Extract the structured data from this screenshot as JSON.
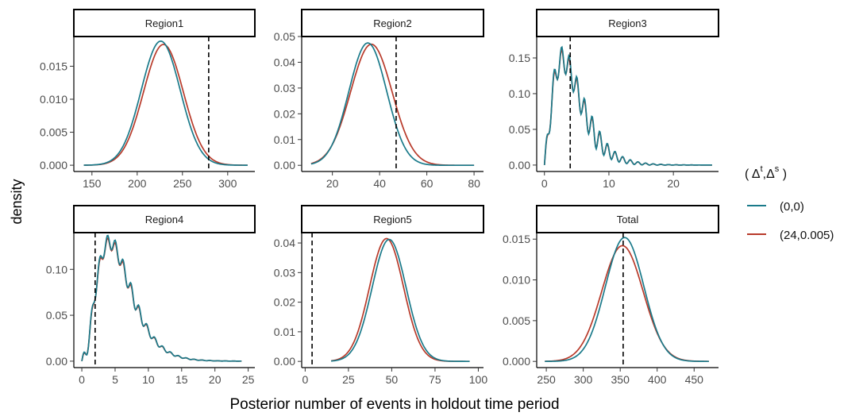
{
  "chart_data": {
    "type": "line",
    "xlabel": "Posterior number of events in holdout time period",
    "ylabel": "density",
    "legend": {
      "title_base": "( Δ",
      "title_sup1": "t",
      "title_mid": ",Δ",
      "title_sup2": "s",
      "title_end": " )",
      "position": "right",
      "entries": [
        {
          "label": "(0,0)",
          "color": "#1a7a8a"
        },
        {
          "label": "(24,0.005)",
          "color": "#b83a2a"
        }
      ]
    },
    "panels": [
      {
        "title": "Region1",
        "xlim": [
          130,
          330
        ],
        "ylim": [
          -0.00095,
          0.0195
        ],
        "xticks": [
          150,
          200,
          250,
          300
        ],
        "xtick_labels": [
          "150",
          "200",
          "250",
          "300"
        ],
        "yticks": [
          0.0,
          0.005,
          0.01,
          0.015
        ],
        "ytick_labels": [
          "0.000",
          "0.005",
          "0.010",
          "0.015"
        ],
        "vline": 279,
        "series": [
          {
            "name": "(0,0)",
            "kind": "normal",
            "mean": 226,
            "sd": 21.5,
            "peak": 0.0188,
            "xmin": 141,
            "xmax": 322
          },
          {
            "name": "(24,0.005)",
            "kind": "normal",
            "mean": 229,
            "sd": 22,
            "peak": 0.0183,
            "xmin": 141,
            "xmax": 322
          }
        ]
      },
      {
        "title": "Region2",
        "xlim": [
          7,
          84
        ],
        "ylim": [
          -0.0024,
          0.05
        ],
        "xticks": [
          20,
          40,
          60,
          80
        ],
        "xtick_labels": [
          "20",
          "40",
          "60",
          "80"
        ],
        "yticks": [
          0.0,
          0.01,
          0.02,
          0.03,
          0.04,
          0.05
        ],
        "ytick_labels": [
          "0.00",
          "0.01",
          "0.02",
          "0.03",
          "0.04",
          "0.05"
        ],
        "vline": 47,
        "series": [
          {
            "name": "(0,0)",
            "kind": "normal",
            "mean": 35,
            "sd": 8,
            "peak": 0.0475,
            "xmin": 11,
            "xmax": 80
          },
          {
            "name": "(24,0.005)",
            "kind": "normal",
            "mean": 36.5,
            "sd": 8.8,
            "peak": 0.047,
            "xmin": 11,
            "xmax": 80
          }
        ]
      },
      {
        "title": "Region3",
        "xlim": [
          -1.2,
          27
        ],
        "ylim": [
          -0.009,
          0.18
        ],
        "xticks": [
          0,
          10,
          20
        ],
        "xtick_labels": [
          "0",
          "10",
          "20"
        ],
        "yticks": [
          0.0,
          0.05,
          0.1,
          0.15
        ],
        "ytick_labels": [
          "0.00",
          "0.05",
          "0.10",
          "0.15"
        ],
        "vline": 4,
        "series": [
          {
            "name": "(0,0)",
            "kind": "gamma",
            "shape": 2.6,
            "scale": 1.75,
            "peak": 0.148,
            "wiggle": 0.018,
            "xmin": 0,
            "xmax": 26
          },
          {
            "name": "(24,0.005)",
            "kind": "gamma",
            "shape": 2.6,
            "scale": 1.75,
            "peak": 0.146,
            "wiggle": 0.016,
            "xmin": 0,
            "xmax": 26
          }
        ]
      },
      {
        "title": "Region4",
        "xlim": [
          -1.2,
          26
        ],
        "ylim": [
          -0.007,
          0.14
        ],
        "xticks": [
          0,
          5,
          10,
          15,
          20,
          25
        ],
        "xtick_labels": [
          "0",
          "5",
          "10",
          "15",
          "20",
          "25"
        ],
        "yticks": [
          0.0,
          0.05,
          0.1
        ],
        "ytick_labels": [
          "0.00",
          "0.05",
          "0.10"
        ],
        "vline": 2,
        "series": [
          {
            "name": "(0,0)",
            "kind": "gamma",
            "shape": 3.6,
            "scale": 1.6,
            "peak": 0.13,
            "wiggle": 0.008,
            "xmin": 0,
            "xmax": 24
          },
          {
            "name": "(24,0.005)",
            "kind": "gamma",
            "shape": 3.6,
            "scale": 1.6,
            "peak": 0.128,
            "wiggle": 0.007,
            "xmin": 0,
            "xmax": 24
          }
        ]
      },
      {
        "title": "Region5",
        "xlim": [
          -2,
          103
        ],
        "ylim": [
          -0.0021,
          0.0435
        ],
        "xticks": [
          0,
          25,
          50,
          75,
          100
        ],
        "xtick_labels": [
          "0",
          "25",
          "50",
          "75",
          "100"
        ],
        "yticks": [
          0.0,
          0.01,
          0.02,
          0.03,
          0.04
        ],
        "ytick_labels": [
          "0.00",
          "0.01",
          "0.02",
          "0.03",
          "0.04"
        ],
        "vline": 4,
        "series": [
          {
            "name": "(0,0)",
            "kind": "normal",
            "mean": 48.5,
            "sd": 9.8,
            "peak": 0.0412,
            "xmin": 15,
            "xmax": 95
          },
          {
            "name": "(24,0.005)",
            "kind": "normal",
            "mean": 47,
            "sd": 9.8,
            "peak": 0.0415,
            "xmin": 15,
            "xmax": 95
          }
        ]
      },
      {
        "title": "Total",
        "xlim": [
          237,
          483
        ],
        "ylim": [
          -0.00076,
          0.0158
        ],
        "xticks": [
          250,
          300,
          350,
          400,
          450
        ],
        "xtick_labels": [
          "250",
          "300",
          "350",
          "400",
          "450"
        ],
        "yticks": [
          0.0,
          0.005,
          0.01,
          0.015
        ],
        "ytick_labels": [
          "0.000",
          "0.005",
          "0.010",
          "0.015"
        ],
        "vline": 354,
        "series": [
          {
            "name": "(0,0)",
            "kind": "normal",
            "mean": 356,
            "sd": 26,
            "peak": 0.0152,
            "xmin": 248,
            "xmax": 470
          },
          {
            "name": "(24,0.005)",
            "kind": "normal",
            "mean": 353,
            "sd": 28,
            "peak": 0.0142,
            "xmin": 248,
            "xmax": 470
          }
        ]
      }
    ]
  }
}
